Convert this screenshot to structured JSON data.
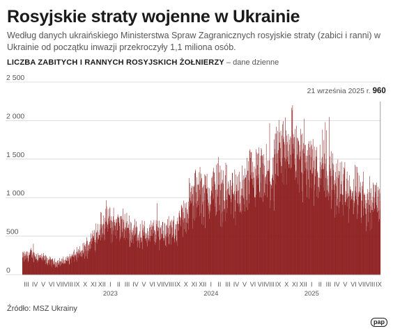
{
  "title": "Rosyjskie straty wojenne w Ukrainie",
  "subtitle": "Według danych ukraińskiego Ministerstwa Spraw Zagranicznych rosyjskie straty (zabici i ranni) w Ukrainie od początku inwazji przekroczyły 1,1 miliona osób.",
  "chart_label": {
    "main": "LICZBA ZABITYCH I RANNYCH ROSYJSKICH ŻOŁNIERZY",
    "suffix": "– dane dzienne"
  },
  "source": "Źródło: MSZ Ukrainy",
  "logo": "pap",
  "colors": {
    "bars": "#8b1a1a",
    "axis_text": "#555555",
    "grid": "#d4d4d4"
  },
  "chart_data": {
    "type": "bar",
    "title": "",
    "ylabel": "",
    "xlabel": "",
    "ylim": [
      0,
      2500
    ],
    "yticks": [
      0,
      500,
      1000,
      1500,
      2000,
      2500
    ],
    "ytick_labels": [
      "0",
      "500",
      "1 000",
      "1 500",
      "2 000",
      "2 500"
    ],
    "grid": true,
    "x_start": "2022-03",
    "x_end": "2025-09-21",
    "month_labels": [
      "III",
      "IV",
      "V",
      "VI",
      "VII",
      "VIII",
      "IX",
      "X",
      "XI",
      "XII",
      "I",
      "II",
      "III",
      "IV",
      "V",
      "VI",
      "VII",
      "VIII",
      "IX",
      "X",
      "XI",
      "XII",
      "I",
      "II",
      "III",
      "IV",
      "V",
      "VI",
      "VII",
      "VIII",
      "IX",
      "X",
      "XI",
      "XII",
      "I",
      "II",
      "III",
      "IV",
      "V",
      "VI",
      "VII",
      "VIII",
      "IX"
    ],
    "year_labels": [
      {
        "label": "2023",
        "month_index": 10
      },
      {
        "label": "2024",
        "month_index": 22
      },
      {
        "label": "2025",
        "month_index": 34
      }
    ],
    "monthly_avg_values": [
      220,
      260,
      230,
      180,
      150,
      170,
      230,
      280,
      400,
      570,
      680,
      640,
      620,
      560,
      520,
      520,
      560,
      580,
      530,
      710,
      930,
      1050,
      1000,
      1120,
      1040,
      1060,
      1000,
      1180,
      1220,
      1210,
      1300,
      1550,
      1750,
      1450,
      1500,
      1400,
      1450,
      1220,
      1100,
      1020,
      1040,
      930,
      980
    ],
    "annotation": {
      "date_label": "21 września 2025 r.",
      "value": 960,
      "value_label": "960"
    }
  }
}
